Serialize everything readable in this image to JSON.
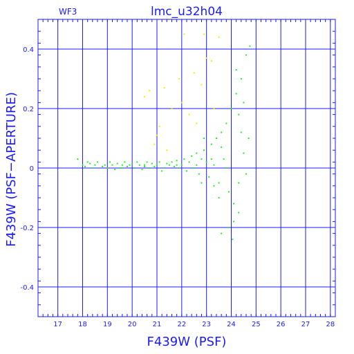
{
  "chart_data": {
    "type": "scatter",
    "title": "lmc_u32h04",
    "corner_label": "WF3",
    "xlabel": "F439W (PSF)",
    "ylabel": "F439W (PSF−APERTURE)",
    "xlim": [
      16.2,
      28.2
    ],
    "ylim": [
      -0.5,
      0.5
    ],
    "xticks": [
      17,
      18,
      19,
      20,
      21,
      22,
      23,
      24,
      25,
      26,
      27,
      28
    ],
    "xtick_labels": [
      "17",
      "18",
      "19",
      "20",
      "21",
      "22",
      "23",
      "24",
      "25",
      "26",
      "27",
      "28"
    ],
    "yticks": [
      -0.4,
      -0.2,
      0,
      0.2,
      0.4
    ],
    "ytick_labels": [
      "-0.4",
      "-0.2",
      "0",
      "0.2",
      "0.4"
    ],
    "grid": true,
    "colors": {
      "axis": "#1a1aff",
      "grid": "#1a1aff",
      "main_points": "#22ee22",
      "outlier_points": "#eeee00"
    },
    "series": [
      {
        "color": "#22ee22",
        "points": [
          [
            17.8,
            0.03
          ],
          [
            18.0,
            0.01
          ],
          [
            18.1,
            0.005
          ],
          [
            18.2,
            0.02
          ],
          [
            18.3,
            0.015
          ],
          [
            18.4,
            0.0
          ],
          [
            18.5,
            0.01
          ],
          [
            18.6,
            0.02
          ],
          [
            18.8,
            0.005
          ],
          [
            18.9,
            0.01
          ],
          [
            19.0,
            0.0
          ],
          [
            19.1,
            0.02
          ],
          [
            19.2,
            0.01
          ],
          [
            19.3,
            -0.005
          ],
          [
            19.4,
            0.015
          ],
          [
            19.5,
            0.0
          ],
          [
            19.6,
            0.01
          ],
          [
            19.7,
            0.02
          ],
          [
            19.8,
            0.005
          ],
          [
            19.9,
            0.01
          ],
          [
            20.0,
            0.015
          ],
          [
            20.1,
            0.0
          ],
          [
            20.2,
            0.02
          ],
          [
            20.3,
            0.01
          ],
          [
            20.4,
            -0.005
          ],
          [
            20.5,
            0.01
          ],
          [
            20.6,
            0.02
          ],
          [
            20.7,
            0.0
          ],
          [
            20.8,
            0.015
          ],
          [
            20.9,
            0.005
          ],
          [
            21.0,
            0.01
          ],
          [
            21.1,
            0.02
          ],
          [
            21.2,
            -0.01
          ],
          [
            21.3,
            0.0
          ],
          [
            21.4,
            0.015
          ],
          [
            21.5,
            0.01
          ],
          [
            21.6,
            0.02
          ],
          [
            21.7,
            0.005
          ],
          [
            21.8,
            0.025
          ],
          [
            21.9,
            0.0
          ],
          [
            22.0,
            0.01
          ],
          [
            22.1,
            0.03
          ],
          [
            22.2,
            -0.01
          ],
          [
            22.3,
            0.02
          ],
          [
            22.4,
            0.04
          ],
          [
            22.5,
            0.0
          ],
          [
            22.6,
            0.05
          ],
          [
            22.7,
            -0.02
          ],
          [
            22.8,
            0.03
          ],
          [
            22.9,
            0.06
          ],
          [
            23.0,
            0.02
          ],
          [
            23.1,
            -0.03
          ],
          [
            23.2,
            0.08
          ],
          [
            23.3,
            0.01
          ],
          [
            23.4,
            0.1
          ],
          [
            23.5,
            -0.05
          ],
          [
            23.6,
            0.12
          ],
          [
            23.7,
            0.03
          ],
          [
            23.8,
            0.15
          ],
          [
            23.9,
            -0.08
          ],
          [
            24.0,
            0.2
          ],
          [
            24.1,
            -0.12
          ],
          [
            24.2,
            0.25
          ],
          [
            24.3,
            -0.15
          ],
          [
            24.4,
            0.3
          ],
          [
            24.5,
            0.05
          ],
          [
            24.6,
            0.38
          ],
          [
            24.7,
            0.1
          ],
          [
            24.75,
            0.41
          ],
          [
            24.6,
            -0.02
          ],
          [
            23.6,
            -0.22
          ],
          [
            24.05,
            -0.24
          ],
          [
            23.9,
            -0.2
          ],
          [
            24.1,
            -0.18
          ],
          [
            23.5,
            -0.1
          ],
          [
            23.3,
            -0.06
          ],
          [
            22.8,
            -0.05
          ],
          [
            24.3,
            0.18
          ],
          [
            24.5,
            0.22
          ],
          [
            24.2,
            0.33
          ],
          [
            23.2,
            0.03
          ],
          [
            22.6,
            0.01
          ],
          [
            21.8,
            0.01
          ],
          [
            20.5,
            0.005
          ],
          [
            19.6,
            0.0
          ],
          [
            23.8,
            0.0
          ],
          [
            24.3,
            -0.05
          ],
          [
            24.4,
            0.12
          ],
          [
            22.9,
            0.1
          ],
          [
            23.6,
            0.07
          ]
        ]
      },
      {
        "color": "#eeee00",
        "points": [
          [
            20.5,
            0.24
          ],
          [
            20.7,
            0.26
          ],
          [
            21.1,
            0.14
          ],
          [
            21.3,
            0.27
          ],
          [
            21.9,
            0.3
          ],
          [
            22.1,
            0.45
          ],
          [
            22.5,
            0.32
          ],
          [
            22.9,
            0.45
          ],
          [
            23.0,
            0.37
          ],
          [
            23.2,
            0.36
          ],
          [
            22.8,
            0.28
          ],
          [
            22.3,
            0.18
          ],
          [
            21.6,
            0.2
          ],
          [
            23.5,
            0.44
          ],
          [
            22.0,
            0.22
          ],
          [
            21.4,
            0.06
          ],
          [
            20.9,
            0.08
          ],
          [
            22.6,
            0.15
          ],
          [
            23.3,
            0.2
          ],
          [
            21.0,
            0.11
          ]
        ]
      }
    ]
  }
}
